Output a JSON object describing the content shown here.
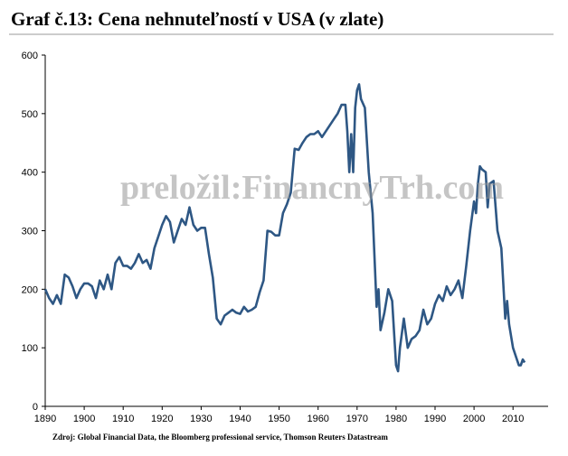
{
  "chart_data": {
    "type": "line",
    "title": "Graf č.13: Cena nehnuteľností v USA (v zlate)",
    "watermark": "preložil:FinancnyTrh.com",
    "source": "Zdroj: Global Financial Data, the Bloomberg professional service, Thomson Reuters Datastream",
    "x": [
      1890,
      1891,
      1892,
      1893,
      1894,
      1895,
      1896,
      1897,
      1898,
      1899,
      1900,
      1901,
      1902,
      1903,
      1904,
      1905,
      1906,
      1907,
      1908,
      1909,
      1910,
      1911,
      1912,
      1913,
      1914,
      1915,
      1916,
      1917,
      1918,
      1919,
      1920,
      1921,
      1922,
      1923,
      1924,
      1925,
      1926,
      1927,
      1928,
      1929,
      1930,
      1931,
      1932,
      1933,
      1934,
      1935,
      1936,
      1937,
      1938,
      1939,
      1940,
      1941,
      1942,
      1943,
      1944,
      1945,
      1946,
      1947,
      1948,
      1949,
      1950,
      1951,
      1952,
      1953,
      1954,
      1955,
      1956,
      1957,
      1958,
      1959,
      1960,
      1961,
      1962,
      1963,
      1964,
      1965,
      1966,
      1967,
      1967.5,
      1968,
      1968.5,
      1969,
      1969.5,
      1970,
      1970.5,
      1971,
      1972,
      1973,
      1974,
      1975,
      1975.5,
      1976,
      1977,
      1978,
      1979,
      1980,
      1980.5,
      1981,
      1982,
      1983,
      1984,
      1985,
      1986,
      1987,
      1988,
      1989,
      1990,
      1991,
      1992,
      1993,
      1994,
      1995,
      1996,
      1997,
      1998,
      1999,
      2000,
      2000.5,
      2001,
      2001.5,
      2002,
      2003,
      2003.5,
      2004,
      2005,
      2006,
      2007,
      2008,
      2008.5,
      2009,
      2010,
      2011,
      2011.5,
      2012,
      2012.5,
      2013
    ],
    "series": [
      {
        "color": "#2e5784",
        "values": [
          200,
          185,
          175,
          190,
          175,
          225,
          220,
          205,
          185,
          200,
          210,
          210,
          205,
          185,
          215,
          200,
          225,
          200,
          245,
          255,
          240,
          240,
          235,
          245,
          260,
          245,
          250,
          235,
          270,
          290,
          310,
          325,
          315,
          280,
          300,
          320,
          310,
          340,
          310,
          300,
          305,
          305,
          260,
          220,
          150,
          140,
          155,
          160,
          165,
          160,
          158,
          170,
          162,
          165,
          170,
          195,
          215,
          300,
          298,
          292,
          292,
          330,
          345,
          365,
          440,
          438,
          450,
          460,
          465,
          465,
          470,
          460,
          470,
          480,
          490,
          500,
          515,
          515,
          470,
          400,
          465,
          400,
          510,
          540,
          550,
          525,
          510,
          400,
          330,
          170,
          200,
          130,
          160,
          200,
          180,
          70,
          60,
          100,
          150,
          100,
          115,
          120,
          130,
          165,
          140,
          150,
          175,
          190,
          180,
          205,
          190,
          200,
          215,
          185,
          240,
          300,
          350,
          330,
          380,
          410,
          405,
          400,
          340,
          380,
          385,
          300,
          270,
          150,
          180,
          140,
          100,
          80,
          70,
          70,
          80,
          75
        ]
      }
    ],
    "xlim": [
      1890,
      2019
    ],
    "ylim": [
      0,
      600
    ],
    "xticks": [
      1890,
      1900,
      1910,
      1920,
      1930,
      1940,
      1950,
      1960,
      1970,
      1980,
      1990,
      2000,
      2010
    ],
    "yticks": [
      0,
      100,
      200,
      300,
      400,
      500,
      600
    ]
  }
}
